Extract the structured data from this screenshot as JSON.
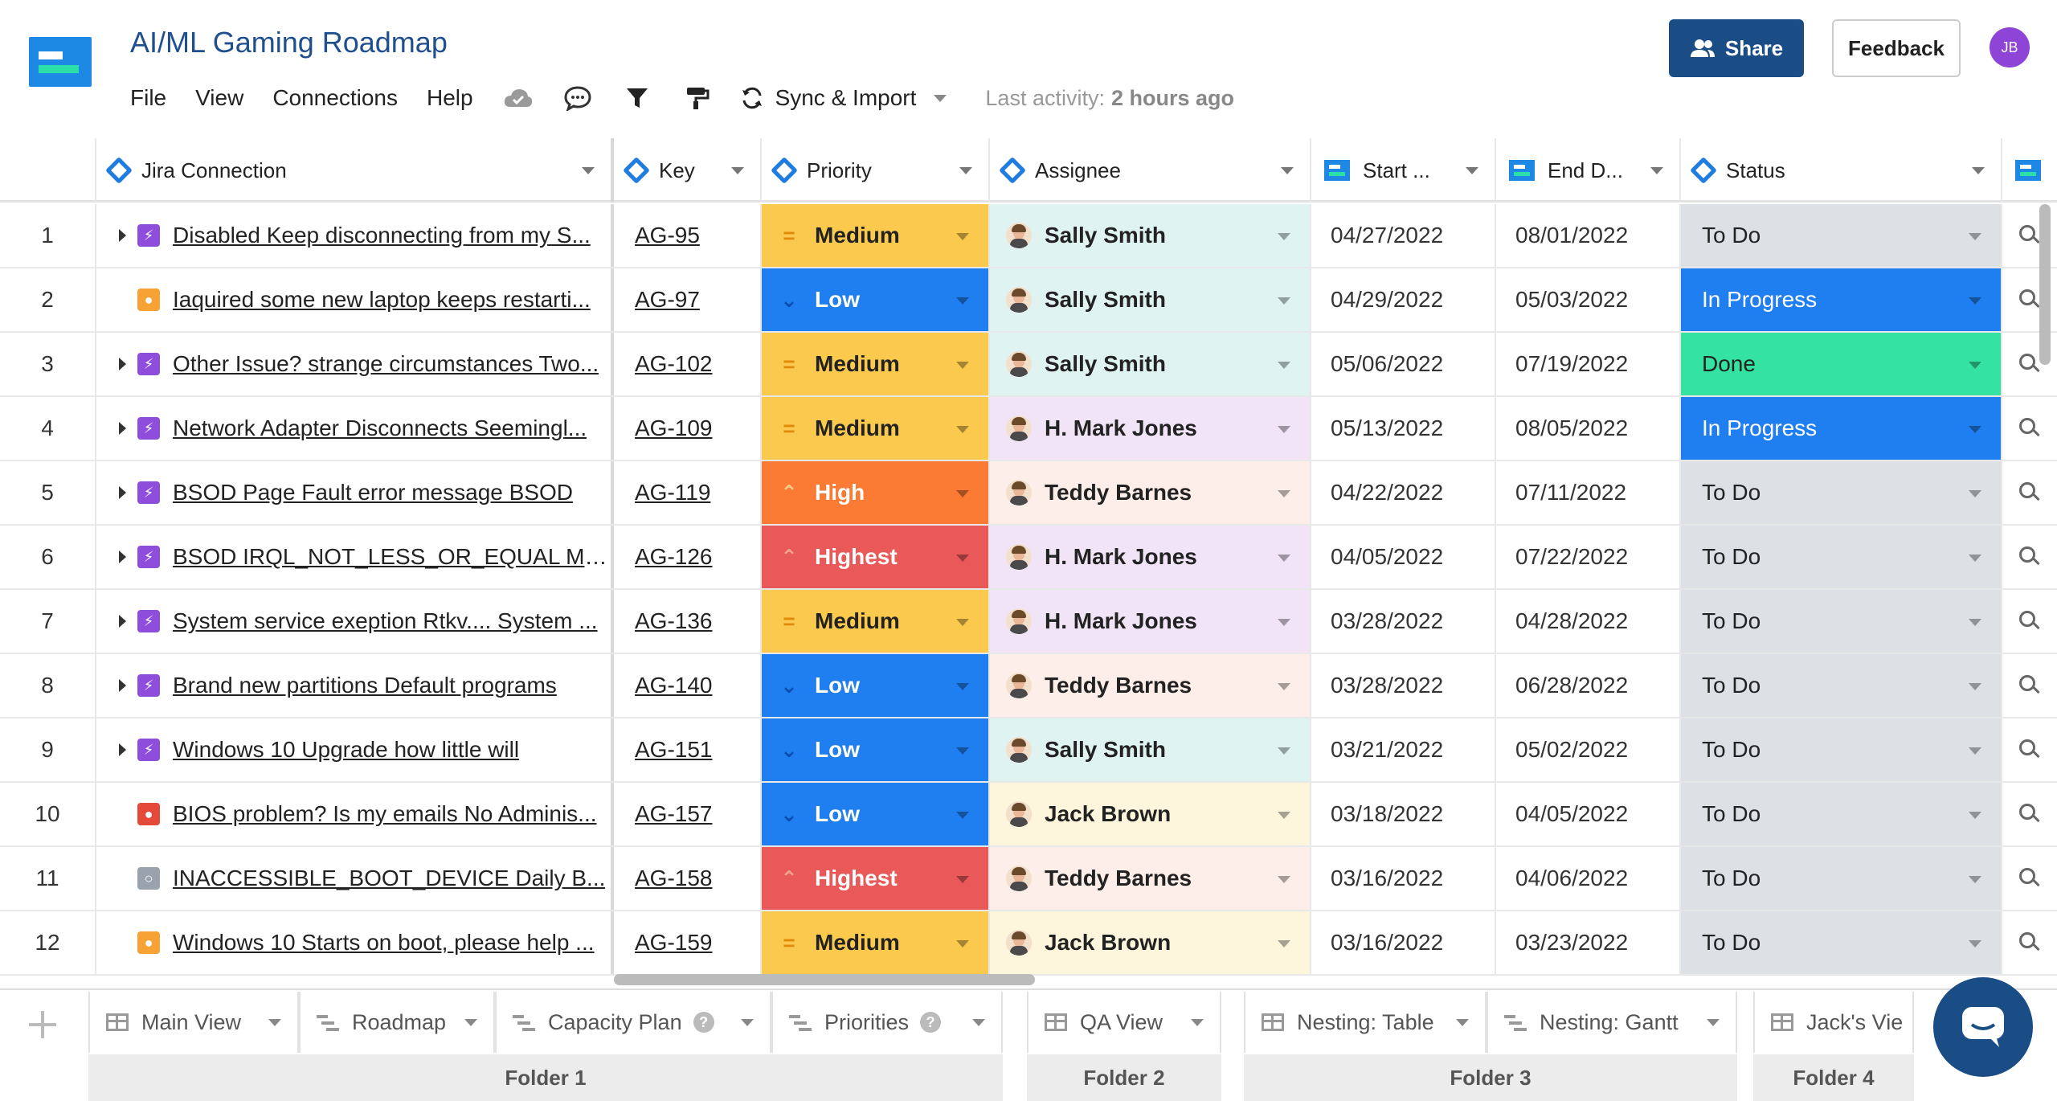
{
  "app": {
    "title": "AI/ML Gaming Roadmap",
    "menu": [
      "File",
      "View",
      "Connections",
      "Help"
    ],
    "sync_label": "Sync & Import",
    "last_activity_label": "Last activity:",
    "last_activity_value": "2 hours ago",
    "share_label": "Share",
    "feedback_label": "Feedback",
    "user_initials": "JB"
  },
  "columns": {
    "connection": "Jira Connection",
    "key": "Key",
    "priority": "Priority",
    "assignee": "Assignee",
    "start": "Start ...",
    "end": "End D...",
    "status": "Status"
  },
  "colors": {
    "Medium": "#fcc94f",
    "Low": "#1f7ff0",
    "High": "#fb7a34",
    "Highest": "#ea5959",
    "To Do": "#dde0e5",
    "In Progress": "#1f7ff0",
    "Done": "#34e3a1",
    "Sally Smith": "#dff3f0",
    "H. Mark Jones": "#f0e4f6",
    "Teddy Barnes": "#fdeee9",
    "Jack Brown": "#fdf6dc",
    "type_story": "#8e4ddb",
    "type_task": "#f7a234",
    "type_bug": "#e5493a",
    "type_other": "#9aa3ad"
  },
  "rows": [
    {
      "num": "1",
      "type": "story",
      "expandable": true,
      "summary": "Disabled Keep disconnecting from my S...",
      "key": "AG-95",
      "priority": "Medium",
      "assignee": "Sally Smith",
      "start": "04/27/2022",
      "end": "08/01/2022",
      "status": "To Do"
    },
    {
      "num": "2",
      "type": "task",
      "expandable": false,
      "summary": "Iaquired some new laptop keeps restarti...",
      "key": "AG-97",
      "priority": "Low",
      "assignee": "Sally Smith",
      "start": "04/29/2022",
      "end": "05/03/2022",
      "status": "In Progress"
    },
    {
      "num": "3",
      "type": "story",
      "expandable": true,
      "summary": "Other Issue? strange circumstances Two...",
      "key": "AG-102",
      "priority": "Medium",
      "assignee": "Sally Smith",
      "start": "05/06/2022",
      "end": "07/19/2022",
      "status": "Done"
    },
    {
      "num": "4",
      "type": "story",
      "expandable": true,
      "summary": "Network Adapter Disconnects Seemingl...",
      "key": "AG-109",
      "priority": "Medium",
      "assignee": "H. Mark Jones",
      "start": "05/13/2022",
      "end": "08/05/2022",
      "status": "In Progress"
    },
    {
      "num": "5",
      "type": "story",
      "expandable": true,
      "summary": "BSOD Page Fault error message BSOD",
      "key": "AG-119",
      "priority": "High",
      "assignee": "Teddy Barnes",
      "start": "04/22/2022",
      "end": "07/11/2022",
      "status": "To Do"
    },
    {
      "num": "6",
      "type": "story",
      "expandable": true,
      "summary": "BSOD IRQL_NOT_LESS_OR_EQUAL Mo...",
      "key": "AG-126",
      "priority": "Highest",
      "assignee": "H. Mark Jones",
      "start": "04/05/2022",
      "end": "07/22/2022",
      "status": "To Do"
    },
    {
      "num": "7",
      "type": "story",
      "expandable": true,
      "summary": "System service exeption Rtkv.... System ...",
      "key": "AG-136",
      "priority": "Medium",
      "assignee": "H. Mark Jones",
      "start": "03/28/2022",
      "end": "04/28/2022",
      "status": "To Do"
    },
    {
      "num": "8",
      "type": "story",
      "expandable": true,
      "summary": "Brand new partitions Default programs",
      "key": "AG-140",
      "priority": "Low",
      "assignee": "Teddy Barnes",
      "start": "03/28/2022",
      "end": "06/28/2022",
      "status": "To Do"
    },
    {
      "num": "9",
      "type": "story",
      "expandable": true,
      "summary": "Windows 10 Upgrade how little will",
      "key": "AG-151",
      "priority": "Low",
      "assignee": "Sally Smith",
      "start": "03/21/2022",
      "end": "05/02/2022",
      "status": "To Do"
    },
    {
      "num": "10",
      "type": "bug",
      "expandable": false,
      "summary": "BIOS problem? Is my emails No Adminis...",
      "key": "AG-157",
      "priority": "Low",
      "assignee": "Jack Brown",
      "start": "03/18/2022",
      "end": "04/05/2022",
      "status": "To Do"
    },
    {
      "num": "11",
      "type": "other",
      "expandable": false,
      "summary": "INACCESSIBLE_BOOT_DEVICE Daily B...",
      "key": "AG-158",
      "priority": "Highest",
      "assignee": "Teddy Barnes",
      "start": "03/16/2022",
      "end": "04/06/2022",
      "status": "To Do"
    },
    {
      "num": "12",
      "type": "task",
      "expandable": false,
      "summary": "Windows 10 Starts on boot, please help ...",
      "key": "AG-159",
      "priority": "Medium",
      "assignee": "Jack Brown",
      "start": "03/16/2022",
      "end": "03/23/2022",
      "status": "To Do"
    }
  ],
  "tabs": [
    {
      "label": "Main View",
      "icon": "table",
      "help": false
    },
    {
      "label": "Roadmap",
      "icon": "gantt",
      "help": false
    },
    {
      "label": "Capacity Plan",
      "icon": "gantt",
      "help": true
    },
    {
      "label": "Priorities",
      "icon": "gantt",
      "help": true
    },
    {
      "label": "QA View",
      "icon": "table",
      "help": false
    },
    {
      "label": "Nesting: Table",
      "icon": "table",
      "help": false
    },
    {
      "label": "Nesting: Gantt",
      "icon": "gantt",
      "help": false
    },
    {
      "label": "Jack's Vie",
      "icon": "table",
      "help": false
    }
  ],
  "folders": [
    "Folder 1",
    "Folder 2",
    "Folder 3",
    "Folder 4"
  ]
}
